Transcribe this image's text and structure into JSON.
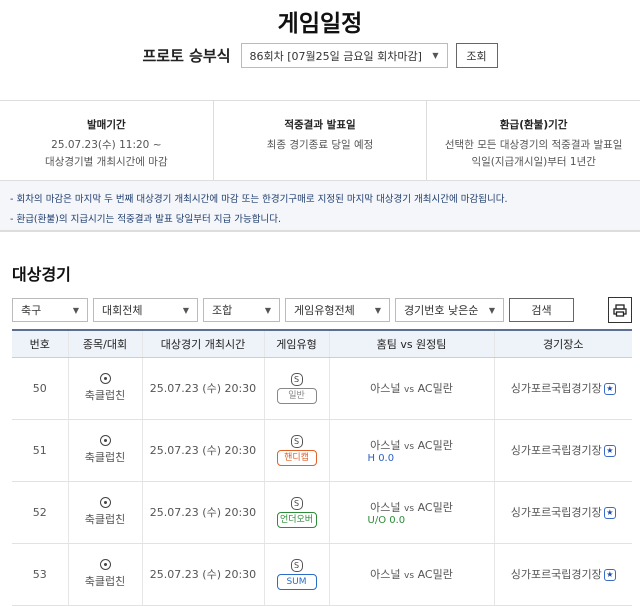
{
  "page": {
    "title": "게임일정"
  },
  "round": {
    "label": "프로토 승부식",
    "selected": "86회차 [07월25일 금요일 회차마감]",
    "search_label": "조회"
  },
  "info": [
    {
      "heading": "발매기간",
      "lines": [
        "25.07.23(수) 11:20 ~",
        "대상경기별 개최시간에 마감"
      ]
    },
    {
      "heading": "적중결과 발표일",
      "lines": [
        "최종 경기종료 당일 예정"
      ]
    },
    {
      "heading": "환급(환불)기간",
      "lines": [
        "선택한 모든 대상경기의 적중결과 발표일",
        "익일(지급개시일)부터 1년간"
      ]
    }
  ],
  "notes": [
    "- 회차의 마감은 마지막 두 번째 대상경기 개최시간에 마감 또는 한경기구매로 지정된 마지막 대상경기 개최시간에 마감됩니다.",
    "- 환급(환불)의 지급시기는 적중결과 발표 당일부터 지급 가능합니다."
  ],
  "section": {
    "title": "대상경기"
  },
  "filters": {
    "sport": "축구",
    "league": "대회전체",
    "combo": "조합",
    "game_type": "게임유형전체",
    "sort": "경기번호 낮은순",
    "search_label": "검색",
    "print_icon": "printer-icon"
  },
  "table": {
    "headers": [
      "번호",
      "종목/대회",
      "대상경기 개최시간",
      "게임유형",
      "홈팀 vs 원정팀",
      "경기장소"
    ],
    "rows": [
      {
        "no": "50",
        "league": "축클럽친",
        "time": "25.07.23 (수) 20:30",
        "s": "S",
        "type": "일반",
        "type_color": "#888888",
        "home": "아스널",
        "vs": "vs",
        "away": "AC밀란",
        "sub": "",
        "sub_color": "",
        "venue": "싱가포르국립경기장"
      },
      {
        "no": "51",
        "league": "축클럽친",
        "time": "25.07.23 (수) 20:30",
        "s": "S",
        "type": "핸디캡",
        "type_color": "#e0622a",
        "home": "아스널",
        "vs": "vs",
        "away": "AC밀란",
        "sub": "H 0.0",
        "sub_color": "#2a5fc7",
        "venue": "싱가포르국립경기장"
      },
      {
        "no": "52",
        "league": "축클럽친",
        "time": "25.07.23 (수) 20:30",
        "s": "S",
        "type": "언더오버",
        "type_color": "#2e8b3a",
        "home": "아스널",
        "vs": "vs",
        "away": "AC밀란",
        "sub": "U/O 0.0",
        "sub_color": "#2e8b3a",
        "venue": "싱가포르국립경기장"
      },
      {
        "no": "53",
        "league": "축클럽친",
        "time": "25.07.23 (수) 20:30",
        "s": "S",
        "type": "SUM",
        "type_color": "#2a6cc7",
        "home": "아스널",
        "vs": "vs",
        "away": "AC밀란",
        "sub": "",
        "sub_color": "",
        "venue": "싱가포르국립경기장"
      }
    ]
  }
}
